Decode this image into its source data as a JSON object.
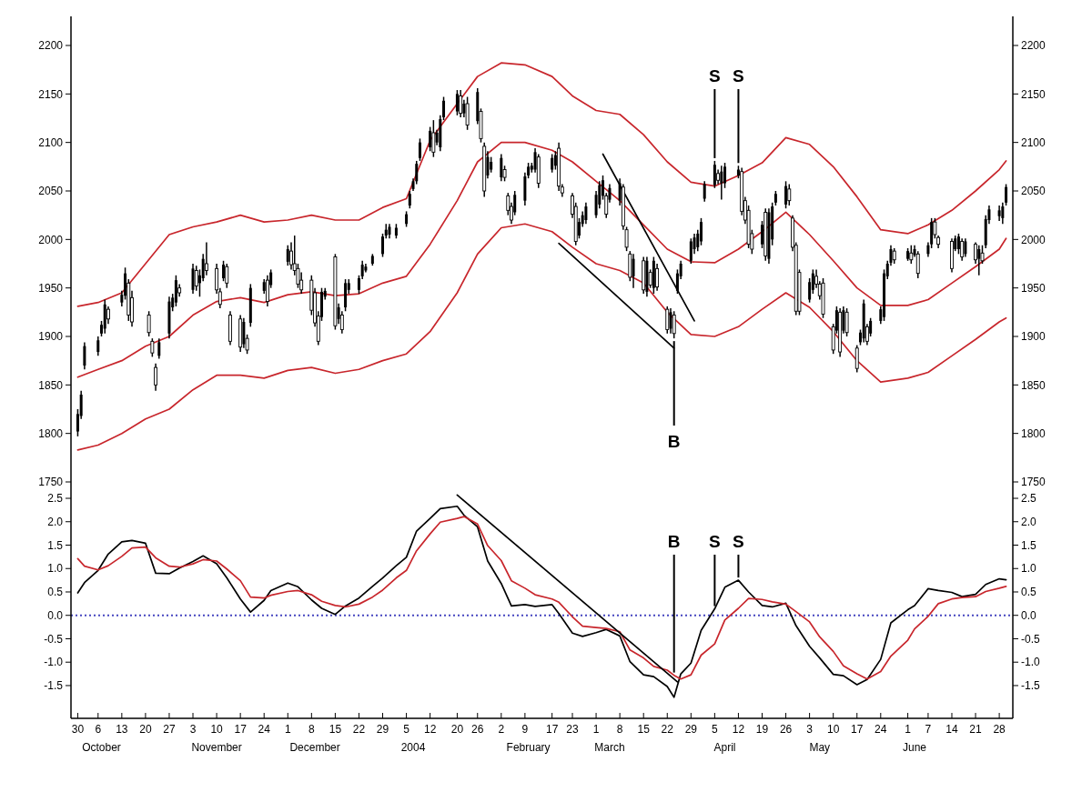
{
  "chart_data": [
    {
      "type": "candlestick",
      "color": "#000000",
      "tick_labels": "y",
      "xlim": [
        "2003-09-28",
        "2004-07-02"
      ],
      "ylim": [
        1750,
        2230
      ],
      "yticks": [
        1750,
        1800,
        1850,
        1900,
        1950,
        2000,
        2050,
        2100,
        2150,
        2200
      ],
      "y2lim": [
        1750,
        2230
      ],
      "y2ticks": [
        1750,
        1800,
        1850,
        1900,
        1950,
        2000,
        2050,
        2100,
        2150,
        2200
      ],
      "x": [
        "2003-09-30",
        "2003-10-01",
        "2003-10-02",
        "2003-10-06",
        "2003-10-07",
        "2003-10-08",
        "2003-10-09",
        "2003-10-13",
        "2003-10-14",
        "2003-10-15",
        "2003-10-16",
        "2003-10-21",
        "2003-10-22",
        "2003-10-23",
        "2003-10-24",
        "2003-10-27",
        "2003-10-28",
        "2003-10-29",
        "2003-10-30",
        "2003-11-03",
        "2003-11-04",
        "2003-11-05",
        "2003-11-06",
        "2003-11-07",
        "2003-11-10",
        "2003-11-11",
        "2003-11-12",
        "2003-11-13",
        "2003-11-14",
        "2003-11-17",
        "2003-11-18",
        "2003-11-19",
        "2003-11-20",
        "2003-11-24",
        "2003-11-25",
        "2003-11-26",
        "2003-12-01",
        "2003-12-02",
        "2003-12-03",
        "2003-12-04",
        "2003-12-05",
        "2003-12-08",
        "2003-12-09",
        "2003-12-10",
        "2003-12-11",
        "2003-12-12",
        "2003-12-15",
        "2003-12-16",
        "2003-12-17",
        "2003-12-18",
        "2003-12-19",
        "2003-12-22",
        "2003-12-23",
        "2003-12-24",
        "2003-12-26",
        "2003-12-29",
        "2003-12-30",
        "2003-12-31",
        "2004-01-02",
        "2004-01-05",
        "2004-01-06",
        "2004-01-07",
        "2004-01-08",
        "2004-01-09",
        "2004-01-12",
        "2004-01-13",
        "2004-01-14",
        "2004-01-15",
        "2004-01-16",
        "2004-01-20",
        "2004-01-21",
        "2004-01-22",
        "2004-01-23",
        "2004-01-26",
        "2004-01-27",
        "2004-01-28",
        "2004-01-29",
        "2004-01-30",
        "2004-02-02",
        "2004-02-03",
        "2004-02-04",
        "2004-02-05",
        "2004-02-06",
        "2004-02-09",
        "2004-02-10",
        "2004-02-11",
        "2004-02-12",
        "2004-02-13",
        "2004-02-17",
        "2004-02-18",
        "2004-02-19",
        "2004-02-20",
        "2004-02-23",
        "2004-02-24",
        "2004-02-25",
        "2004-02-26",
        "2004-02-27",
        "2004-03-01",
        "2004-03-02",
        "2004-03-03",
        "2004-03-04",
        "2004-03-05",
        "2004-03-08",
        "2004-03-09",
        "2004-03-10",
        "2004-03-11",
        "2004-03-12",
        "2004-03-15",
        "2004-03-16",
        "2004-03-17",
        "2004-03-18",
        "2004-03-19",
        "2004-03-22",
        "2004-03-23",
        "2004-03-24",
        "2004-03-25",
        "2004-03-26",
        "2004-03-29",
        "2004-03-30",
        "2004-03-31",
        "2004-04-01",
        "2004-04-02",
        "2004-04-05",
        "2004-04-06",
        "2004-04-07",
        "2004-04-08",
        "2004-04-12",
        "2004-04-13",
        "2004-04-14",
        "2004-04-15",
        "2004-04-16",
        "2004-04-19",
        "2004-04-20",
        "2004-04-21",
        "2004-04-22",
        "2004-04-23",
        "2004-04-26",
        "2004-04-27",
        "2004-04-28",
        "2004-04-29",
        "2004-04-30",
        "2004-05-03",
        "2004-05-04",
        "2004-05-05",
        "2004-05-06",
        "2004-05-07",
        "2004-05-10",
        "2004-05-11",
        "2004-05-12",
        "2004-05-13",
        "2004-05-14",
        "2004-05-17",
        "2004-05-18",
        "2004-05-19",
        "2004-05-20",
        "2004-05-21",
        "2004-05-24",
        "2004-05-25",
        "2004-05-26",
        "2004-05-27",
        "2004-05-28",
        "2004-06-01",
        "2004-06-02",
        "2004-06-03",
        "2004-06-04",
        "2004-06-07",
        "2004-06-08",
        "2004-06-09",
        "2004-06-10",
        "2004-06-14",
        "2004-06-15",
        "2004-06-16",
        "2004-06-17",
        "2004-06-18",
        "2004-06-21",
        "2004-06-22",
        "2004-06-23",
        "2004-06-24",
        "2004-06-25",
        "2004-06-28",
        "2004-06-29",
        "2004-06-30"
      ],
      "ohlc": [
        [
          1802,
          1825,
          1797,
          1820
        ],
        [
          1818,
          1844,
          1815,
          1840
        ],
        [
          1870,
          1894,
          1866,
          1890
        ],
        [
          1884,
          1900,
          1880,
          1896
        ],
        [
          1903,
          1916,
          1900,
          1912
        ],
        [
          1908,
          1938,
          1903,
          1933
        ],
        [
          1928,
          1931,
          1913,
          1918
        ],
        [
          1935,
          1947,
          1931,
          1943
        ],
        [
          1942,
          1971,
          1938,
          1965
        ],
        [
          1955,
          1959,
          1916,
          1922
        ],
        [
          1940,
          1947,
          1910,
          1915
        ],
        [
          1922,
          1926,
          1900,
          1904
        ],
        [
          1895,
          1898,
          1879,
          1883
        ],
        [
          1868,
          1872,
          1844,
          1850
        ],
        [
          1880,
          1898,
          1877,
          1894
        ],
        [
          1903,
          1941,
          1898,
          1936
        ],
        [
          1930,
          1944,
          1926,
          1940
        ],
        [
          1935,
          1963,
          1931,
          1958
        ],
        [
          1950,
          1954,
          1941,
          1945
        ],
        [
          1948,
          1975,
          1944,
          1970
        ],
        [
          1968,
          1973,
          1947,
          1952
        ],
        [
          1955,
          1969,
          1941,
          1963
        ],
        [
          1960,
          1985,
          1957,
          1980
        ],
        [
          1975,
          1997,
          1963,
          1968
        ],
        [
          1970,
          1975,
          1944,
          1948
        ],
        [
          1946,
          1950,
          1929,
          1933
        ],
        [
          1960,
          1978,
          1957,
          1974
        ],
        [
          1972,
          1975,
          1950,
          1955
        ],
        [
          1922,
          1926,
          1891,
          1895
        ],
        [
          1918,
          1922,
          1884,
          1889
        ],
        [
          1892,
          1919,
          1888,
          1915
        ],
        [
          1898,
          1902,
          1882,
          1886
        ],
        [
          1914,
          1954,
          1910,
          1950
        ],
        [
          1947,
          1959,
          1944,
          1956
        ],
        [
          1958,
          1963,
          1931,
          1936
        ],
        [
          1953,
          1969,
          1950,
          1966
        ],
        [
          1977,
          1994,
          1973,
          1990
        ],
        [
          1988,
          1997,
          1969,
          1974
        ],
        [
          1975,
          2004,
          1963,
          1968
        ],
        [
          1970,
          1975,
          1950,
          1954
        ],
        [
          1958,
          1966,
          1944,
          1948
        ],
        [
          1958,
          1963,
          1922,
          1927
        ],
        [
          1945,
          1950,
          1910,
          1914
        ],
        [
          1921,
          1926,
          1891,
          1895
        ],
        [
          1920,
          1950,
          1916,
          1946
        ],
        [
          1941,
          1950,
          1938,
          1947
        ],
        [
          1982,
          1985,
          1907,
          1911
        ],
        [
          1918,
          1934,
          1913,
          1930
        ],
        [
          1922,
          1926,
          1903,
          1907
        ],
        [
          1930,
          1959,
          1926,
          1955
        ],
        [
          1948,
          1959,
          1944,
          1955
        ],
        [
          1948,
          1963,
          1944,
          1960
        ],
        [
          1962,
          1978,
          1959,
          1974
        ],
        [
          1968,
          1975,
          1966,
          1972
        ],
        [
          1975,
          1985,
          1973,
          1983
        ],
        [
          1985,
          2006,
          1982,
          2003
        ],
        [
          2004,
          2016,
          2001,
          2010
        ],
        [
          2005,
          2016,
          2001,
          2013
        ],
        [
          2004,
          2016,
          2001,
          2012
        ],
        [
          2016,
          2029,
          2013,
          2026
        ],
        [
          2035,
          2050,
          2032,
          2047
        ],
        [
          2052,
          2063,
          2050,
          2060
        ],
        [
          2060,
          2081,
          2057,
          2078
        ],
        [
          2084,
          2104,
          2081,
          2100
        ],
        [
          2095,
          2116,
          2091,
          2112
        ],
        [
          2110,
          2123,
          2085,
          2090
        ],
        [
          2100,
          2113,
          2097,
          2110
        ],
        [
          2095,
          2128,
          2091,
          2124
        ],
        [
          2126,
          2147,
          2123,
          2143
        ],
        [
          2132,
          2154,
          2128,
          2150
        ],
        [
          2148,
          2154,
          2126,
          2130
        ],
        [
          2130,
          2144,
          2126,
          2140
        ],
        [
          2140,
          2147,
          2113,
          2118
        ],
        [
          2122,
          2156,
          2119,
          2152
        ],
        [
          2132,
          2135,
          2100,
          2104
        ],
        [
          2096,
          2100,
          2044,
          2050
        ],
        [
          2066,
          2091,
          2063,
          2085
        ],
        [
          2072,
          2085,
          2069,
          2080
        ],
        [
          2064,
          2088,
          2060,
          2084
        ],
        [
          2072,
          2076,
          2060,
          2064
        ],
        [
          2045,
          2048,
          2025,
          2030
        ],
        [
          2034,
          2038,
          2016,
          2020
        ],
        [
          2028,
          2050,
          2025,
          2046
        ],
        [
          2040,
          2069,
          2035,
          2065
        ],
        [
          2066,
          2079,
          2063,
          2075
        ],
        [
          2072,
          2079,
          2069,
          2076
        ],
        [
          2072,
          2094,
          2069,
          2090
        ],
        [
          2085,
          2088,
          2053,
          2058
        ],
        [
          2072,
          2088,
          2069,
          2084
        ],
        [
          2076,
          2091,
          2072,
          2087
        ],
        [
          2094,
          2100,
          2050,
          2055
        ],
        [
          2054,
          2057,
          2044,
          2048
        ],
        [
          2045,
          2048,
          2022,
          2026
        ],
        [
          2034,
          2038,
          1994,
          1998
        ],
        [
          2004,
          2022,
          2001,
          2018
        ],
        [
          2016,
          2029,
          2013,
          2025
        ],
        [
          2020,
          2038,
          2016,
          2034
        ],
        [
          2025,
          2050,
          2022,
          2046
        ],
        [
          2036,
          2060,
          2032,
          2056
        ],
        [
          2045,
          2066,
          2041,
          2061
        ],
        [
          2045,
          2048,
          2022,
          2026
        ],
        [
          2041,
          2057,
          2038,
          2053
        ],
        [
          2040,
          2063,
          2035,
          2058
        ],
        [
          2054,
          2057,
          2010,
          2014
        ],
        [
          2010,
          2013,
          1988,
          1992
        ],
        [
          1985,
          1988,
          1957,
          1961
        ],
        [
          1962,
          1985,
          1950,
          1980
        ],
        [
          1978,
          1982,
          1944,
          1948
        ],
        [
          1946,
          1982,
          1941,
          1978
        ],
        [
          1966,
          1969,
          1950,
          1953
        ],
        [
          1950,
          1982,
          1944,
          1978
        ],
        [
          1970,
          1975,
          1947,
          1951
        ],
        [
          1928,
          1931,
          1903,
          1907
        ],
        [
          1908,
          1929,
          1903,
          1925
        ],
        [
          1922,
          1926,
          1898,
          1903
        ],
        [
          1947,
          1969,
          1944,
          1965
        ],
        [
          1962,
          1978,
          1959,
          1975
        ],
        [
          1978,
          2001,
          1975,
          1998
        ],
        [
          1990,
          2006,
          1985,
          2002
        ],
        [
          1992,
          2010,
          1988,
          2006
        ],
        [
          1998,
          2022,
          1994,
          2018
        ],
        [
          2042,
          2060,
          2039,
          2057
        ],
        [
          2056,
          2081,
          2053,
          2077
        ],
        [
          2068,
          2072,
          2057,
          2061
        ],
        [
          2058,
          2076,
          2041,
          2070
        ],
        [
          2058,
          2079,
          2053,
          2075
        ],
        [
          2066,
          2076,
          2063,
          2072
        ],
        [
          2070,
          2074,
          2025,
          2029
        ],
        [
          2040,
          2044,
          2016,
          2020
        ],
        [
          2030,
          2035,
          1991,
          1995
        ],
        [
          2006,
          2010,
          1985,
          1990
        ],
        [
          1995,
          2019,
          1991,
          2015
        ],
        [
          2028,
          2032,
          1978,
          1983
        ],
        [
          1980,
          2032,
          1975,
          2028
        ],
        [
          2000,
          2038,
          1994,
          2034
        ],
        [
          2038,
          2050,
          2035,
          2047
        ],
        [
          2036,
          2060,
          2032,
          2055
        ],
        [
          2052,
          2057,
          2035,
          2040
        ],
        [
          2022,
          2025,
          1988,
          1992
        ],
        [
          1994,
          1997,
          1922,
          1926
        ],
        [
          1966,
          1969,
          1922,
          1926
        ],
        [
          1938,
          1960,
          1935,
          1956
        ],
        [
          1948,
          1969,
          1944,
          1965
        ],
        [
          1962,
          1969,
          1950,
          1954
        ],
        [
          1954,
          1957,
          1938,
          1942
        ],
        [
          1955,
          1960,
          1919,
          1923
        ],
        [
          1910,
          1913,
          1882,
          1886
        ],
        [
          1906,
          1931,
          1903,
          1927
        ],
        [
          1925,
          1929,
          1879,
          1884
        ],
        [
          1906,
          1931,
          1903,
          1927
        ],
        [
          1925,
          1929,
          1900,
          1904
        ],
        [
          1888,
          1891,
          1863,
          1867
        ],
        [
          1894,
          1907,
          1891,
          1904
        ],
        [
          1898,
          1938,
          1894,
          1934
        ],
        [
          1910,
          1913,
          1891,
          1895
        ],
        [
          1903,
          1919,
          1900,
          1916
        ],
        [
          1916,
          1931,
          1913,
          1928
        ],
        [
          1920,
          1969,
          1916,
          1965
        ],
        [
          1962,
          1978,
          1959,
          1975
        ],
        [
          1976,
          1994,
          1973,
          1990
        ],
        [
          1988,
          1991,
          1975,
          1979
        ],
        [
          1980,
          1991,
          1978,
          1988
        ],
        [
          1986,
          1994,
          1975,
          1979
        ],
        [
          1984,
          1994,
          1982,
          1990
        ],
        [
          1985,
          1988,
          1960,
          1965
        ],
        [
          1985,
          1997,
          1982,
          1994
        ],
        [
          1995,
          2022,
          1991,
          2018
        ],
        [
          2018,
          2022,
          2001,
          2005
        ],
        [
          2002,
          2004,
          1991,
          1995
        ],
        [
          1998,
          2001,
          1966,
          1970
        ],
        [
          1990,
          2004,
          1988,
          2001
        ],
        [
          1990,
          2006,
          1985,
          2003
        ],
        [
          1998,
          2001,
          1978,
          1982
        ],
        [
          1985,
          2001,
          1982,
          1998
        ],
        [
          1995,
          1997,
          1975,
          1979
        ],
        [
          1980,
          1994,
          1963,
          1990
        ],
        [
          1986,
          1994,
          1975,
          1978
        ],
        [
          1994,
          2025,
          1991,
          2021
        ],
        [
          2020,
          2035,
          2016,
          2031
        ],
        [
          2024,
          2035,
          2019,
          2030
        ],
        [
          2022,
          2038,
          2016,
          2034
        ],
        [
          2038,
          2057,
          2035,
          2054
        ]
      ],
      "series": [
        {
          "type": "line",
          "color": "#c8262c",
          "x": [
            "2003-09-30",
            "2003-10-06",
            "2003-10-13",
            "2003-10-20",
            "2003-10-27",
            "2003-11-03",
            "2003-11-10",
            "2003-11-17",
            "2003-11-24",
            "2003-12-01",
            "2003-12-08",
            "2003-12-15",
            "2003-12-22",
            "2003-12-29",
            "2004-01-05",
            "2004-01-12",
            "2004-01-20",
            "2004-01-26",
            "2004-02-02",
            "2004-02-09",
            "2004-02-17",
            "2004-02-23",
            "2004-03-01",
            "2004-03-08",
            "2004-03-15",
            "2004-03-22",
            "2004-03-29",
            "2004-04-05",
            "2004-04-12",
            "2004-04-19",
            "2004-04-26",
            "2004-05-03",
            "2004-05-10",
            "2004-05-17",
            "2004-05-24",
            "2004-06-01",
            "2004-06-07",
            "2004-06-14",
            "2004-06-21",
            "2004-06-28",
            "2004-06-30"
          ],
          "values": [
            1931,
            1935,
            1945,
            1975,
            2005,
            2013,
            2018,
            2025,
            2018,
            2020,
            2025,
            2020,
            2020,
            2033,
            2042,
            2102,
            2140,
            2168,
            2182,
            2180,
            2168,
            2148,
            2133,
            2129,
            2108,
            2080,
            2059,
            2055,
            2066,
            2079,
            2105,
            2098,
            2075,
            2044,
            2010,
            2006,
            2015,
            2030,
            2050,
            2072,
            2081
          ]
        },
        {
          "type": "line",
          "color": "#c8262c",
          "x": [
            "2003-09-30",
            "2003-10-06",
            "2003-10-13",
            "2003-10-20",
            "2003-10-27",
            "2003-11-03",
            "2003-11-10",
            "2003-11-17",
            "2003-11-24",
            "2003-12-01",
            "2003-12-08",
            "2003-12-15",
            "2003-12-22",
            "2003-12-29",
            "2004-01-05",
            "2004-01-12",
            "2004-01-20",
            "2004-01-26",
            "2004-02-02",
            "2004-02-09",
            "2004-02-17",
            "2004-02-23",
            "2004-03-01",
            "2004-03-08",
            "2004-03-15",
            "2004-03-22",
            "2004-03-29",
            "2004-04-05",
            "2004-04-12",
            "2004-04-19",
            "2004-04-26",
            "2004-05-03",
            "2004-05-10",
            "2004-05-17",
            "2004-05-24",
            "2004-06-01",
            "2004-06-07",
            "2004-06-14",
            "2004-06-21",
            "2004-06-28",
            "2004-06-30"
          ],
          "values": [
            1858,
            1866,
            1875,
            1890,
            1900,
            1922,
            1936,
            1940,
            1935,
            1943,
            1946,
            1942,
            1944,
            1955,
            1962,
            1995,
            2040,
            2080,
            2100,
            2100,
            2092,
            2080,
            2060,
            2040,
            2015,
            1990,
            1977,
            1976,
            1990,
            2008,
            2028,
            2005,
            1978,
            1950,
            1932,
            1932,
            1938,
            1955,
            1972,
            1990,
            2001
          ]
        },
        {
          "type": "line",
          "color": "#c8262c",
          "x": [
            "2003-09-30",
            "2003-10-06",
            "2003-10-13",
            "2003-10-20",
            "2003-10-27",
            "2003-11-03",
            "2003-11-10",
            "2003-11-17",
            "2003-11-24",
            "2003-12-01",
            "2003-12-08",
            "2003-12-15",
            "2003-12-22",
            "2003-12-29",
            "2004-01-05",
            "2004-01-12",
            "2004-01-20",
            "2004-01-26",
            "2004-02-02",
            "2004-02-09",
            "2004-02-17",
            "2004-02-23",
            "2004-03-01",
            "2004-03-08",
            "2004-03-15",
            "2004-03-22",
            "2004-03-29",
            "2004-04-05",
            "2004-04-12",
            "2004-04-19",
            "2004-04-26",
            "2004-05-03",
            "2004-05-10",
            "2004-05-17",
            "2004-05-24",
            "2004-06-01",
            "2004-06-07",
            "2004-06-14",
            "2004-06-21",
            "2004-06-28",
            "2004-06-30"
          ],
          "values": [
            1783,
            1788,
            1800,
            1815,
            1825,
            1845,
            1860,
            1860,
            1857,
            1865,
            1868,
            1862,
            1866,
            1875,
            1882,
            1905,
            1945,
            1985,
            2012,
            2016,
            2008,
            1992,
            1975,
            1968,
            1955,
            1925,
            1902,
            1900,
            1910,
            1928,
            1945,
            1930,
            1905,
            1875,
            1853,
            1857,
            1863,
            1880,
            1897,
            1915,
            1919
          ]
        },
        {
          "type": "line",
          "color": "#000000",
          "x": [
            "2004-03-03",
            "2004-03-30"
          ],
          "values": [
            2088,
            1916
          ]
        },
        {
          "type": "line",
          "color": "#000000",
          "x": [
            "2004-02-19",
            "2004-03-24"
          ],
          "values": [
            1996,
            1888
          ]
        }
      ],
      "annotations": [
        {
          "text": "S",
          "x": "2004-04-05",
          "y": 2081
        },
        {
          "text": "S",
          "x": "2004-04-12",
          "y": 2076
        },
        {
          "text": "B",
          "x": "2004-03-24",
          "y": 1898
        }
      ]
    },
    {
      "type": "line",
      "xlim": [
        "2003-09-28",
        "2004-07-02"
      ],
      "x2lim": [
        "2003-09-28",
        "2004-07-02"
      ],
      "x2ticks": [
        {
          "value": "2003-10-07",
          "label": "October"
        },
        {
          "value": "2003-11-10",
          "label": "November"
        },
        {
          "value": "2003-12-09",
          "label": "December"
        },
        {
          "value": "2004-01-07",
          "label": "2004"
        },
        {
          "value": "2004-02-10",
          "label": "February"
        },
        {
          "value": "2004-03-05",
          "label": "March"
        },
        {
          "value": "2004-04-08",
          "label": "April"
        },
        {
          "value": "2004-05-06",
          "label": "May"
        },
        {
          "value": "2004-06-03",
          "label": "June"
        }
      ],
      "xticks": [
        {
          "value": "2003-09-30",
          "label": "30"
        },
        {
          "value": "2003-10-06",
          "label": "6"
        },
        {
          "value": "2003-10-13",
          "label": "13"
        },
        {
          "value": "2003-10-20",
          "label": "20"
        },
        {
          "value": "2003-10-27",
          "label": "27"
        },
        {
          "value": "2003-11-03",
          "label": "3"
        },
        {
          "value": "2003-11-10",
          "label": "10"
        },
        {
          "value": "2003-11-17",
          "label": "17"
        },
        {
          "value": "2003-11-24",
          "label": "24"
        },
        {
          "value": "2003-12-01",
          "label": "1"
        },
        {
          "value": "2003-12-08",
          "label": "8"
        },
        {
          "value": "2003-12-15",
          "label": "15"
        },
        {
          "value": "2003-12-22",
          "label": "22"
        },
        {
          "value": "2003-12-29",
          "label": "29"
        },
        {
          "value": "2004-01-05",
          "label": "5"
        },
        {
          "value": "2004-01-12",
          "label": "12"
        },
        {
          "value": "2004-01-20",
          "label": "20"
        },
        {
          "value": "2004-01-26",
          "label": "26"
        },
        {
          "value": "2004-02-02",
          "label": "2"
        },
        {
          "value": "2004-02-09",
          "label": "9"
        },
        {
          "value": "2004-02-17",
          "label": "17"
        },
        {
          "value": "2004-02-23",
          "label": "23"
        },
        {
          "value": "2004-03-01",
          "label": "1"
        },
        {
          "value": "2004-03-08",
          "label": "8"
        },
        {
          "value": "2004-03-15",
          "label": "15"
        },
        {
          "value": "2004-03-22",
          "label": "22"
        },
        {
          "value": "2004-03-29",
          "label": "29"
        },
        {
          "value": "2004-04-05",
          "label": "5"
        },
        {
          "value": "2004-04-12",
          "label": "12"
        },
        {
          "value": "2004-04-19",
          "label": "19"
        },
        {
          "value": "2004-04-26",
          "label": "26"
        },
        {
          "value": "2004-05-03",
          "label": "3"
        },
        {
          "value": "2004-05-10",
          "label": "10"
        },
        {
          "value": "2004-05-17",
          "label": "17"
        },
        {
          "value": "2004-05-24",
          "label": "24"
        },
        {
          "value": "2004-06-01",
          "label": "1"
        },
        {
          "value": "2004-06-07",
          "label": "7"
        },
        {
          "value": "2004-06-14",
          "label": "14"
        },
        {
          "value": "2004-06-21",
          "label": "21"
        },
        {
          "value": "2004-06-28",
          "label": "28"
        }
      ],
      "ylim": [
        -2.2,
        2.85
      ],
      "yticks": [
        -1.5,
        {
          "value": -1,
          "label": "-1.0"
        },
        -0.5,
        {
          "value": 0,
          "label": "0.0"
        },
        0.5,
        {
          "value": 1,
          "label": "1.0"
        },
        1.5,
        {
          "value": 2,
          "label": "2.0"
        },
        2.5
      ],
      "y2lim": [
        -2.2,
        2.85
      ],
      "y2ticks": [
        -1.5,
        {
          "value": -1,
          "label": "-1.0"
        },
        -0.5,
        {
          "value": 0,
          "label": "0.0"
        },
        0.5,
        {
          "value": 1,
          "label": "1.0"
        },
        1.5,
        {
          "value": 2,
          "label": "2.0"
        },
        2.5
      ],
      "x": [
        "2003-09-30",
        "2003-10-02",
        "2003-10-06",
        "2003-10-09",
        "2003-10-13",
        "2003-10-16",
        "2003-10-20",
        "2003-10-23",
        "2003-10-27",
        "2003-10-30",
        "2003-11-03",
        "2003-11-06",
        "2003-11-10",
        "2003-11-13",
        "2003-11-17",
        "2003-11-20",
        "2003-11-24",
        "2003-11-26",
        "2003-12-01",
        "2003-12-04",
        "2003-12-08",
        "2003-12-11",
        "2003-12-15",
        "2003-12-18",
        "2003-12-22",
        "2003-12-26",
        "2003-12-29",
        "2004-01-02",
        "2004-01-05",
        "2004-01-08",
        "2004-01-12",
        "2004-01-15",
        "2004-01-20",
        "2004-01-22",
        "2004-01-26",
        "2004-01-29",
        "2004-02-02",
        "2004-02-05",
        "2004-02-09",
        "2004-02-12",
        "2004-02-17",
        "2004-02-19",
        "2004-02-23",
        "2004-02-26",
        "2004-03-01",
        "2004-03-04",
        "2004-03-08",
        "2004-03-11",
        "2004-03-15",
        "2004-03-18",
        "2004-03-22",
        "2004-03-24",
        "2004-03-26",
        "2004-03-29",
        "2004-04-01",
        "2004-04-05",
        "2004-04-08",
        "2004-04-12",
        "2004-04-15",
        "2004-04-19",
        "2004-04-22",
        "2004-04-26",
        "2004-04-29",
        "2004-05-03",
        "2004-05-06",
        "2004-05-10",
        "2004-05-13",
        "2004-05-17",
        "2004-05-20",
        "2004-05-24",
        "2004-05-27",
        "2004-06-01",
        "2004-06-03",
        "2004-06-07",
        "2004-06-10",
        "2004-06-14",
        "2004-06-17",
        "2004-06-21",
        "2004-06-24",
        "2004-06-28",
        "2004-06-30"
      ],
      "series": [
        {
          "color": "#000000",
          "values": [
            0.48,
            0.7,
            0.96,
            1.31,
            1.57,
            1.6,
            1.54,
            0.9,
            0.89,
            1.01,
            1.15,
            1.27,
            1.1,
            0.8,
            0.35,
            0.07,
            0.32,
            0.53,
            0.69,
            0.61,
            0.33,
            0.15,
            0.02,
            0.2,
            0.37,
            0.62,
            0.8,
            1.06,
            1.24,
            1.8,
            2.07,
            2.28,
            2.33,
            2.14,
            1.89,
            1.16,
            0.68,
            0.2,
            0.23,
            0.19,
            0.23,
            0.04,
            -0.38,
            -0.45,
            -0.37,
            -0.3,
            -0.44,
            -0.99,
            -1.27,
            -1.31,
            -1.52,
            -1.75,
            -1.25,
            -1.02,
            -0.32,
            0.14,
            0.6,
            0.75,
            0.5,
            0.21,
            0.18,
            0.26,
            -0.22,
            -0.66,
            -0.91,
            -1.26,
            -1.29,
            -1.48,
            -1.37,
            -0.94,
            -0.16,
            0.12,
            0.21,
            0.57,
            0.53,
            0.49,
            0.4,
            0.45,
            0.66,
            0.78,
            0.76
          ]
        },
        {
          "color": "#c8262c",
          "values": [
            1.21,
            1.05,
            0.97,
            1.06,
            1.26,
            1.44,
            1.46,
            1.23,
            1.05,
            1.03,
            1.1,
            1.19,
            1.16,
            0.99,
            0.74,
            0.39,
            0.37,
            0.43,
            0.51,
            0.53,
            0.44,
            0.3,
            0.21,
            0.18,
            0.24,
            0.39,
            0.54,
            0.8,
            0.96,
            1.38,
            1.74,
            1.99,
            2.07,
            2.11,
            1.95,
            1.49,
            1.17,
            0.74,
            0.58,
            0.44,
            0.35,
            0.28,
            -0.03,
            -0.23,
            -0.26,
            -0.28,
            -0.35,
            -0.74,
            -0.91,
            -1.09,
            -1.17,
            -1.28,
            -1.36,
            -1.27,
            -0.85,
            -0.61,
            -0.1,
            0.15,
            0.36,
            0.34,
            0.29,
            0.24,
            0.08,
            -0.14,
            -0.46,
            -0.77,
            -1.08,
            -1.25,
            -1.36,
            -1.2,
            -0.87,
            -0.53,
            -0.29,
            -0.02,
            0.25,
            0.35,
            0.38,
            0.4,
            0.51,
            0.58,
            0.62
          ]
        },
        {
          "color": "#000000",
          "x": [
            "2004-01-20",
            "2004-03-25"
          ],
          "values": [
            2.57,
            -1.42
          ]
        }
      ],
      "ref_lines": [
        {
          "axis": "y",
          "value": 0,
          "color": "#4646c0",
          "line_style": "dotted"
        }
      ],
      "annotations": [
        {
          "text": "B",
          "x": "2004-03-24",
          "y": -1.28
        },
        {
          "text": "S",
          "x": "2004-04-05",
          "y": 0.14
        },
        {
          "text": "S",
          "x": "2004-04-12",
          "y": 0.75
        }
      ]
    }
  ]
}
